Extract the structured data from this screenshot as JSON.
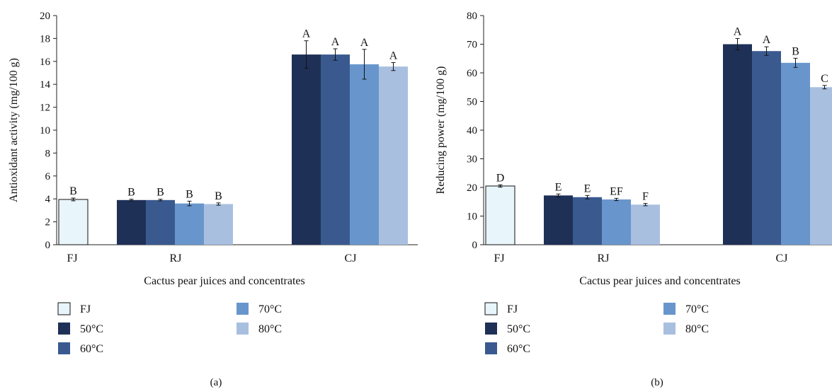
{
  "colors": {
    "FJ": "#e8f5fb",
    "50C": "#1f3057",
    "60C": "#3a5a8f",
    "70C": "#6896cc",
    "80C": "#a9bfe0"
  },
  "legend": {
    "items": [
      {
        "key": "FJ",
        "label": "FJ"
      },
      {
        "key": "50C",
        "label": "50°C"
      },
      {
        "key": "60C",
        "label": "60°C"
      },
      {
        "key": "70C",
        "label": "70°C"
      },
      {
        "key": "80C",
        "label": "80°C"
      }
    ]
  },
  "chart_data": [
    {
      "type": "bar",
      "panel_label": "(a)",
      "xlabel": "Cactus pear juices and concentrates",
      "ylabel": "Antioxidant activity (mg/100 g)",
      "ylim": [
        0,
        20
      ],
      "yticks": [
        0,
        2,
        4,
        6,
        8,
        10,
        12,
        14,
        16,
        18,
        20
      ],
      "categories": [
        "FJ",
        "RJ",
        "CJ"
      ],
      "groups": [
        {
          "category": "FJ",
          "bars": [
            {
              "series": "FJ",
              "value": 3.95,
              "error": 0.12,
              "letter": "B"
            }
          ]
        },
        {
          "category": "RJ",
          "bars": [
            {
              "series": "50C",
              "value": 3.9,
              "error": 0.07,
              "letter": "B"
            },
            {
              "series": "60C",
              "value": 3.9,
              "error": 0.07,
              "letter": "B"
            },
            {
              "series": "70C",
              "value": 3.6,
              "error": 0.2,
              "letter": "B"
            },
            {
              "series": "80C",
              "value": 3.55,
              "error": 0.1,
              "letter": "B"
            }
          ]
        },
        {
          "category": "CJ",
          "bars": [
            {
              "series": "50C",
              "value": 16.6,
              "error": 1.2,
              "letter": "A"
            },
            {
              "series": "60C",
              "value": 16.6,
              "error": 0.5,
              "letter": "A"
            },
            {
              "series": "70C",
              "value": 15.75,
              "error": 1.3,
              "letter": "A"
            },
            {
              "series": "80C",
              "value": 15.55,
              "error": 0.35,
              "letter": "A"
            }
          ]
        }
      ]
    },
    {
      "type": "bar",
      "panel_label": "(b)",
      "xlabel": "Cactus pear juices and concentrates",
      "ylabel": "Reducing power (mg/100 g)",
      "ylim": [
        0,
        80
      ],
      "yticks": [
        0,
        10,
        20,
        30,
        40,
        50,
        60,
        70,
        80
      ],
      "categories": [
        "FJ",
        "RJ",
        "CJ"
      ],
      "groups": [
        {
          "category": "FJ",
          "bars": [
            {
              "series": "FJ",
              "value": 20.5,
              "error": 0.4,
              "letter": "D"
            }
          ]
        },
        {
          "category": "RJ",
          "bars": [
            {
              "series": "50C",
              "value": 17.2,
              "error": 0.5,
              "letter": "E"
            },
            {
              "series": "60C",
              "value": 16.6,
              "error": 0.6,
              "letter": "E"
            },
            {
              "series": "70C",
              "value": 15.8,
              "error": 0.4,
              "letter": "EF"
            },
            {
              "series": "80C",
              "value": 14.0,
              "error": 0.4,
              "letter": "F"
            }
          ]
        },
        {
          "category": "CJ",
          "bars": [
            {
              "series": "50C",
              "value": 70.0,
              "error": 2.0,
              "letter": "A"
            },
            {
              "series": "60C",
              "value": 67.6,
              "error": 1.5,
              "letter": "A"
            },
            {
              "series": "70C",
              "value": 63.5,
              "error": 1.6,
              "letter": "B"
            },
            {
              "series": "80C",
              "value": 55.0,
              "error": 0.6,
              "letter": "C"
            }
          ]
        }
      ]
    }
  ]
}
